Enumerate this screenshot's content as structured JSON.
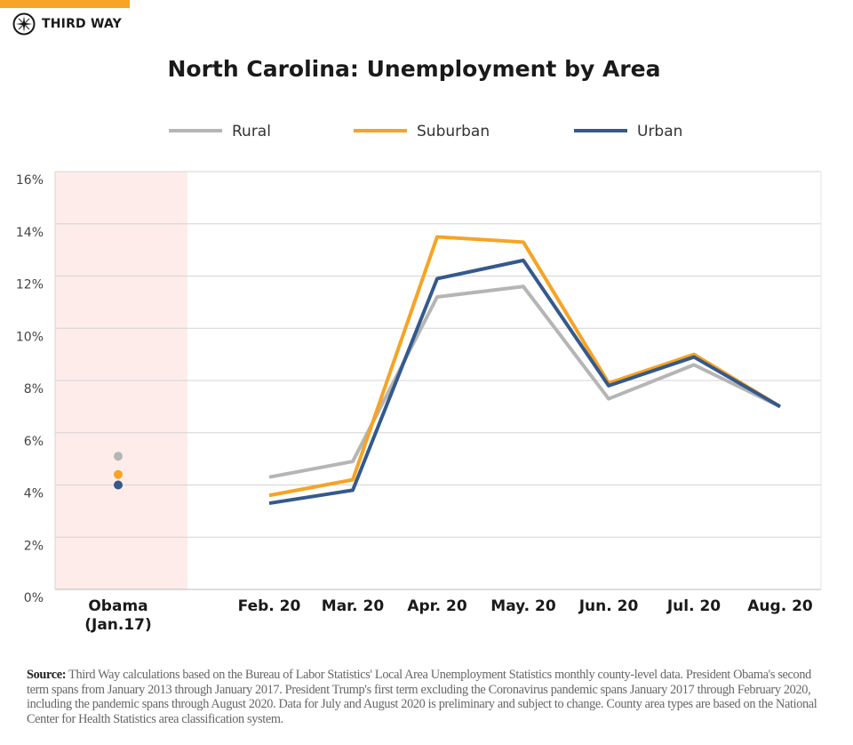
{
  "brand": {
    "name": "THIRD WAY",
    "accent_color": "#f7a324"
  },
  "chart_data": {
    "type": "line",
    "title": "North Carolina: Unemployment by Area",
    "categories": [
      "Obama (Jan.17)",
      "Feb. 20",
      "Mar. 20",
      "Apr. 20",
      "May. 20",
      "Jun. 20",
      "Jul. 20",
      "Aug. 20"
    ],
    "category_labels": [
      [
        "Obama",
        "(Jan.17)"
      ],
      [
        "Feb. 20"
      ],
      [
        "Mar. 20"
      ],
      [
        "Apr. 20"
      ],
      [
        "May. 20"
      ],
      [
        "Jun. 20"
      ],
      [
        "Jul. 20"
      ],
      [
        "Aug. 20"
      ]
    ],
    "ylim": [
      0,
      16
    ],
    "y_ticks": [
      "0%",
      "2%",
      "4%",
      "6%",
      "8%",
      "10%",
      "12%",
      "14%",
      "16%"
    ],
    "grid": true,
    "legend_position": "top",
    "highlight_region": {
      "category": "Obama (Jan.17)",
      "color": "#fdecea",
      "display": "points"
    },
    "series": [
      {
        "name": "Rural",
        "color": "#b5b5b5",
        "values": [
          5.1,
          4.3,
          4.9,
          11.2,
          11.6,
          7.3,
          8.6,
          7.0
        ]
      },
      {
        "name": "Suburban",
        "color": "#f7a324",
        "values": [
          4.4,
          3.6,
          4.2,
          13.5,
          13.3,
          7.9,
          9.0,
          7.0
        ]
      },
      {
        "name": "Urban",
        "color": "#34598c",
        "values": [
          4.0,
          3.3,
          3.8,
          11.9,
          12.6,
          7.8,
          8.9,
          7.0
        ]
      }
    ]
  },
  "source": {
    "label": "Source:",
    "text": "Third Way calculations based on the Bureau of Labor Statistics' Local Area Unemployment Statistics monthly county-level data. President Obama's second term spans from January 2013 through January 2017. President Trump's first term excluding the Coronavirus pandemic spans January 2017 through February 2020, including the pandemic spans through August 2020. Data for July and August 2020 is preliminary and subject to change. County area types are based on the National Center for Health Statistics area classification system."
  }
}
